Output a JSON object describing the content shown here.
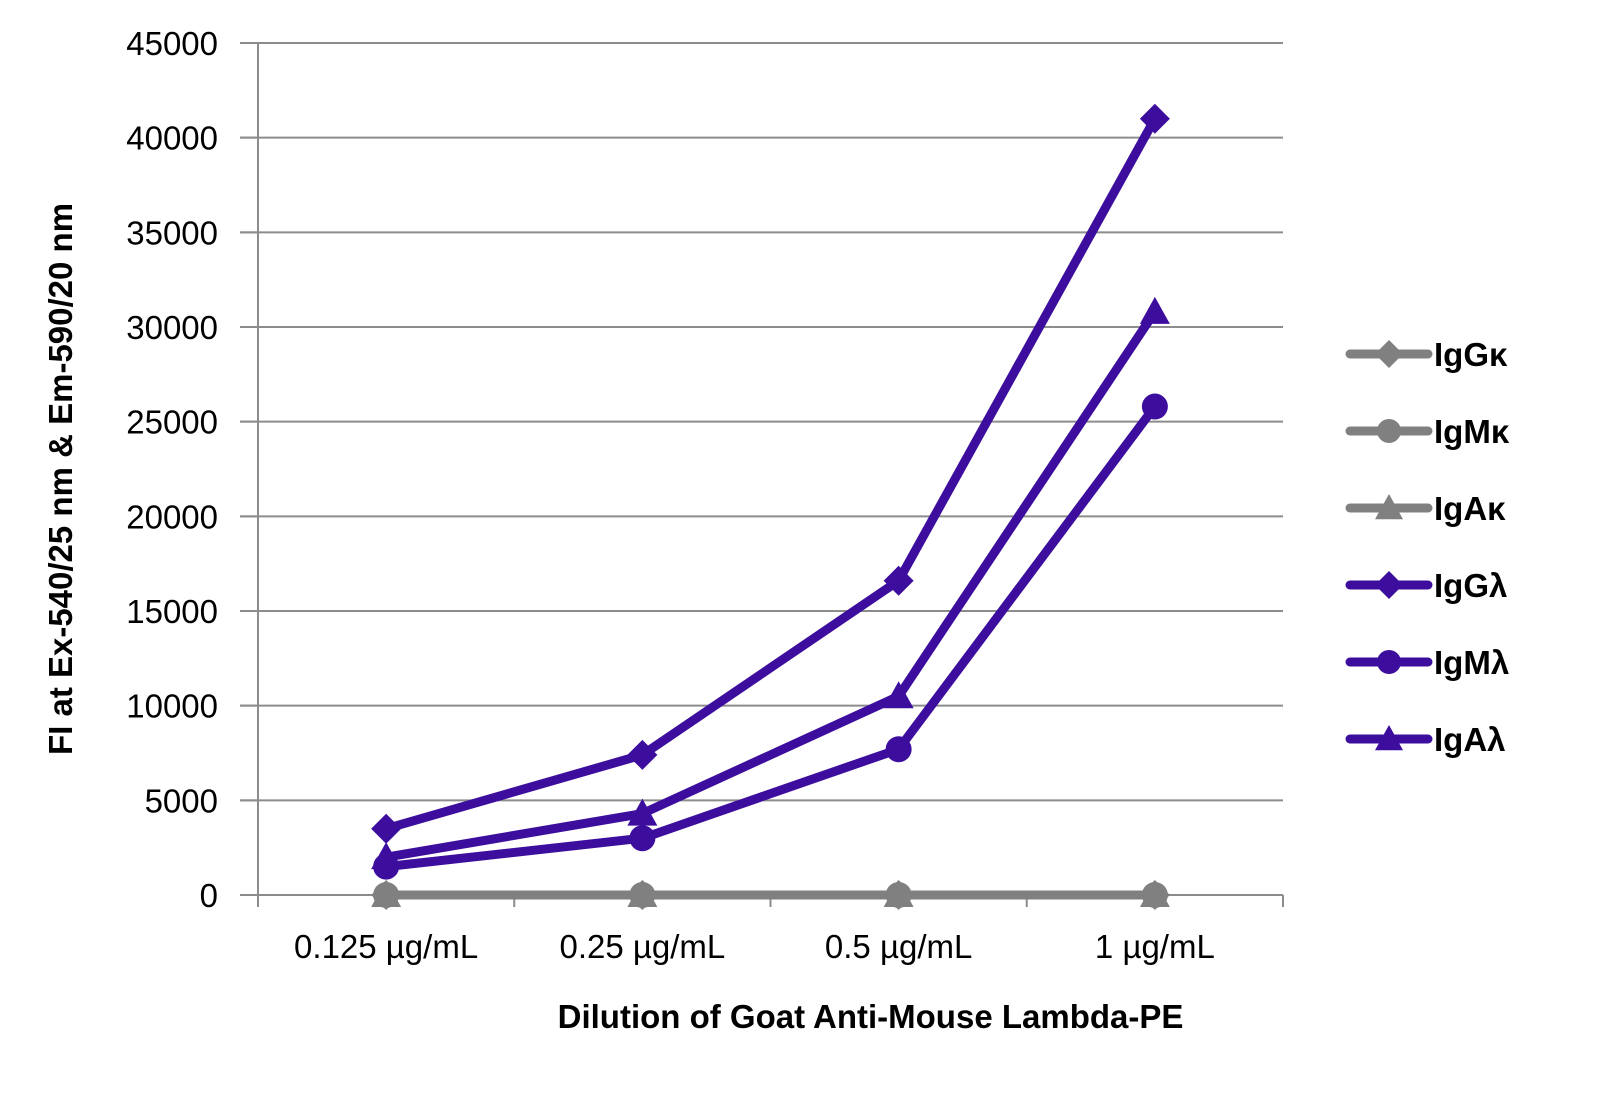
{
  "chart_data": {
    "type": "line",
    "xlabel": "Dilution of Goat Anti-Mouse Lambda-PE",
    "ylabel": "FI at Ex-540/25 nm & Em-590/20 nm",
    "categories": [
      "0.125 µg/mL",
      "0.25 µg/mL",
      "0.5 µg/mL",
      "1 µg/mL"
    ],
    "ylim": [
      0,
      45000
    ],
    "yticks": [
      0,
      5000,
      10000,
      15000,
      20000,
      25000,
      30000,
      35000,
      40000,
      45000
    ],
    "grid": true,
    "legend_position": "right",
    "series": [
      {
        "name": "IgGκ",
        "values": [
          0,
          0,
          0,
          0
        ],
        "color": "#808080",
        "marker": "diamond"
      },
      {
        "name": "IgMκ",
        "values": [
          0,
          0,
          0,
          0
        ],
        "color": "#808080",
        "marker": "circle"
      },
      {
        "name": "IgAκ",
        "values": [
          0,
          0,
          0,
          0
        ],
        "color": "#808080",
        "marker": "triangle"
      },
      {
        "name": "IgGλ",
        "values": [
          3500,
          7400,
          16600,
          41000
        ],
        "color": "#3d0e9e",
        "marker": "diamond"
      },
      {
        "name": "IgMλ",
        "values": [
          1500,
          3000,
          7700,
          25800
        ],
        "color": "#3d0e9e",
        "marker": "circle"
      },
      {
        "name": "IgAλ",
        "values": [
          2000,
          4300,
          10500,
          30800
        ],
        "color": "#3d0e9e",
        "marker": "triangle"
      }
    ]
  }
}
